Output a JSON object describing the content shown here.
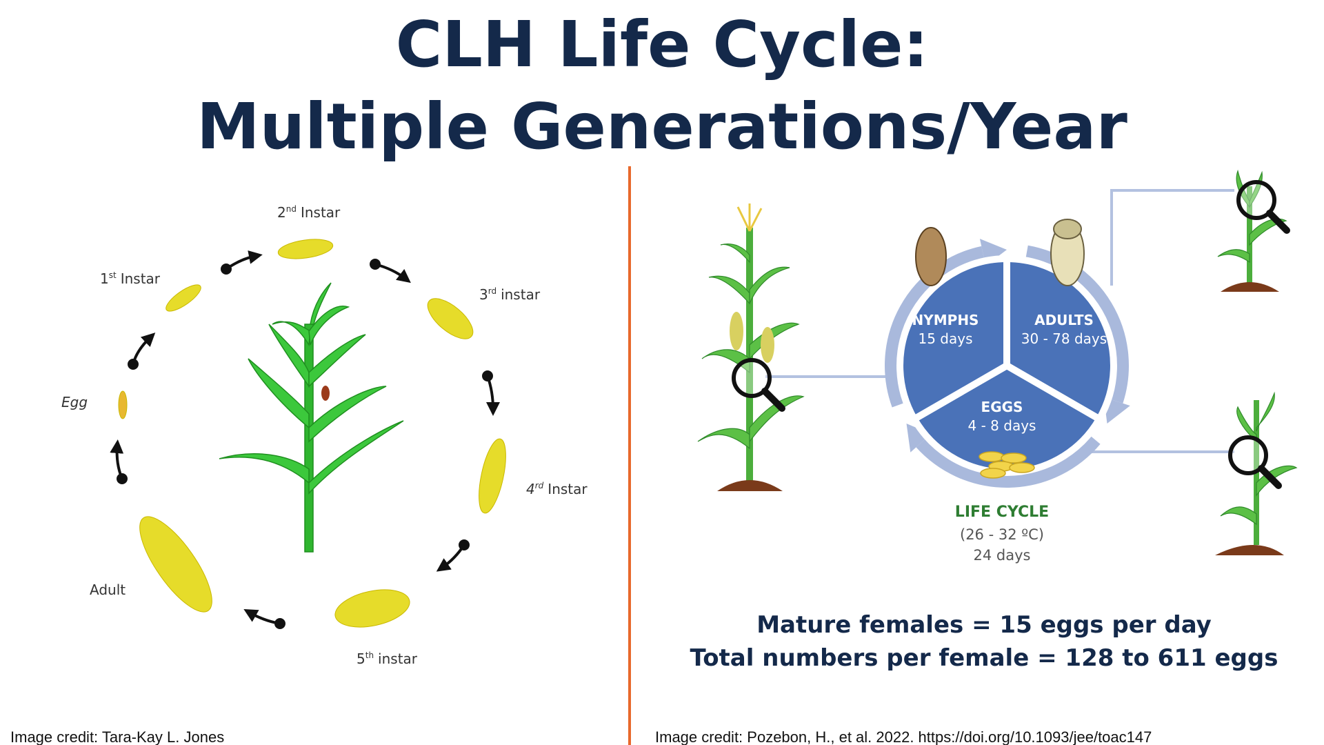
{
  "title": {
    "line1": "CLH Life Cycle:",
    "line2": "Multiple Generations/Year"
  },
  "left_cycle": {
    "stages": [
      {
        "number": "1",
        "suffix": "st",
        "name": "Instar"
      },
      {
        "number": "2",
        "suffix": "nd",
        "name": "Instar"
      },
      {
        "number": "3",
        "suffix": "rd",
        "name": "instar"
      },
      {
        "number": "4",
        "suffix": "rd",
        "name": "Instar"
      },
      {
        "number": "5",
        "suffix": "th",
        "name": "instar"
      }
    ],
    "egg": "Egg",
    "adult": "Adult"
  },
  "pie": {
    "segments": [
      {
        "label": "NYMPHS",
        "duration": "15 days"
      },
      {
        "label": "ADULTS",
        "duration": "30 - 78 days"
      },
      {
        "label": "EGGS",
        "duration": "4 - 8 days"
      }
    ]
  },
  "life_cycle": {
    "title": "LIFE CYCLE",
    "temperature": "(26 - 32 ºC)",
    "duration": "24 days"
  },
  "facts": [
    "Mature females = 15 eggs per day",
    "Total numbers per female = 128 to 611 eggs"
  ],
  "credits": {
    "left": "Image credit: Tara-Kay L. Jones",
    "right": "Image credit: Pozebon, H., et al. 2022. https://doi.org/10.1093/jee/toac147"
  }
}
